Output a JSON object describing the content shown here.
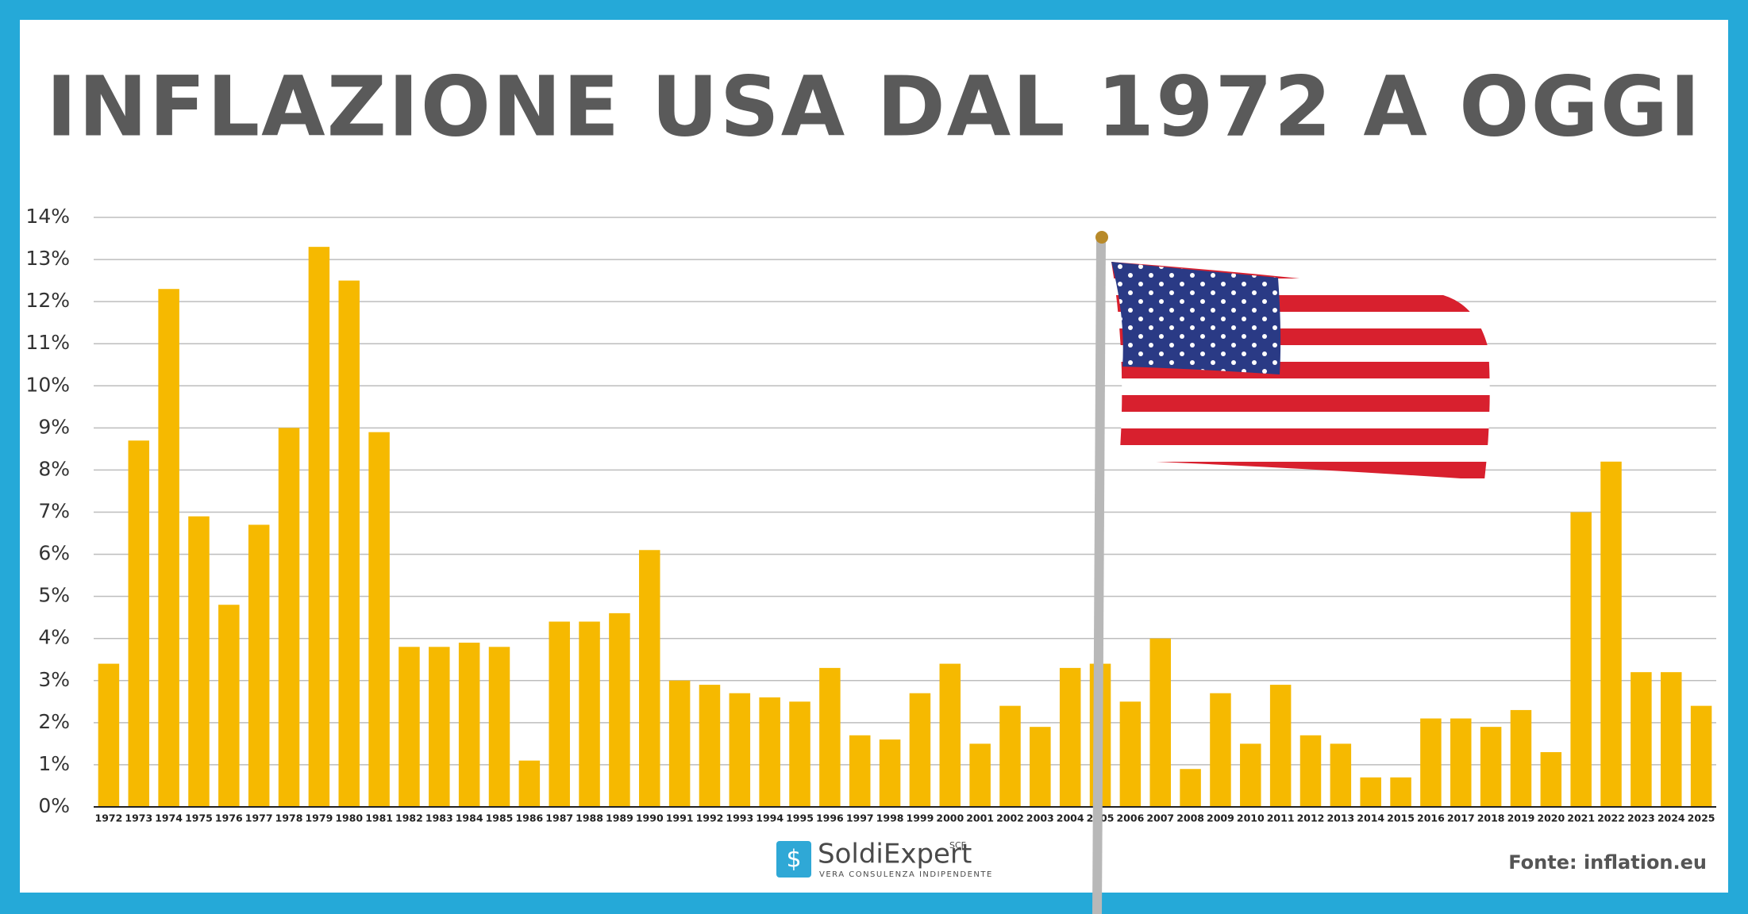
{
  "chart_data": {
    "type": "bar",
    "title": "INFLAZIONE USA DAL 1972 A OGGI",
    "categories": [
      "1972",
      "1973",
      "1974",
      "1975",
      "1976",
      "1977",
      "1978",
      "1979",
      "1980",
      "1981",
      "1982",
      "1983",
      "1984",
      "1985",
      "1986",
      "1987",
      "1988",
      "1989",
      "1990",
      "1991",
      "1992",
      "1993",
      "1994",
      "1995",
      "1996",
      "1997",
      "1998",
      "1999",
      "2000",
      "2001",
      "2002",
      "2003",
      "2004",
      "2005",
      "2006",
      "2007",
      "2008",
      "2009",
      "2010",
      "2011",
      "2012",
      "2013",
      "2014",
      "2015",
      "2016",
      "2017",
      "2018",
      "2019",
      "2020",
      "2021",
      "2022",
      "2023",
      "2024",
      "2025"
    ],
    "values": [
      3.4,
      8.7,
      12.3,
      6.9,
      4.8,
      6.7,
      9.0,
      13.3,
      12.5,
      8.9,
      3.8,
      3.8,
      3.9,
      3.8,
      1.1,
      4.4,
      4.4,
      4.6,
      6.1,
      3.0,
      2.9,
      2.7,
      2.6,
      2.5,
      3.3,
      1.7,
      1.6,
      2.7,
      3.4,
      1.5,
      2.4,
      1.9,
      3.3,
      3.4,
      2.5,
      4.0,
      0.9,
      2.7,
      1.5,
      2.9,
      1.7,
      1.5,
      0.7,
      0.7,
      2.1,
      2.1,
      1.9,
      2.3,
      1.3,
      7.0,
      8.2,
      3.2,
      3.2,
      2.4
    ],
    "color": "#f6b900",
    "ylim": [
      0,
      14
    ],
    "yticks": [
      {
        "value": 0,
        "label": "0%"
      },
      {
        "value": 1,
        "label": "1%"
      },
      {
        "value": 2,
        "label": "2%"
      },
      {
        "value": 3,
        "label": "3%"
      },
      {
        "value": 4,
        "label": "4%"
      },
      {
        "value": 5,
        "label": "5%"
      },
      {
        "value": 6,
        "label": "6%"
      },
      {
        "value": 7,
        "label": "7%"
      },
      {
        "value": 8,
        "label": "8%"
      },
      {
        "value": 9,
        "label": "9%"
      },
      {
        "value": 10,
        "label": "10%"
      },
      {
        "value": 11,
        "label": "11%"
      },
      {
        "value": 12,
        "label": "12%"
      },
      {
        "value": 13,
        "label": "13%"
      },
      {
        "value": 14,
        "label": "14%"
      }
    ],
    "grid": true,
    "source": "Fonte: inflation.eu"
  },
  "logo": {
    "name": "SoldiExpert",
    "mark": "SCF",
    "tagline": "VERA CONSULENZA INDIPENDENTE"
  }
}
